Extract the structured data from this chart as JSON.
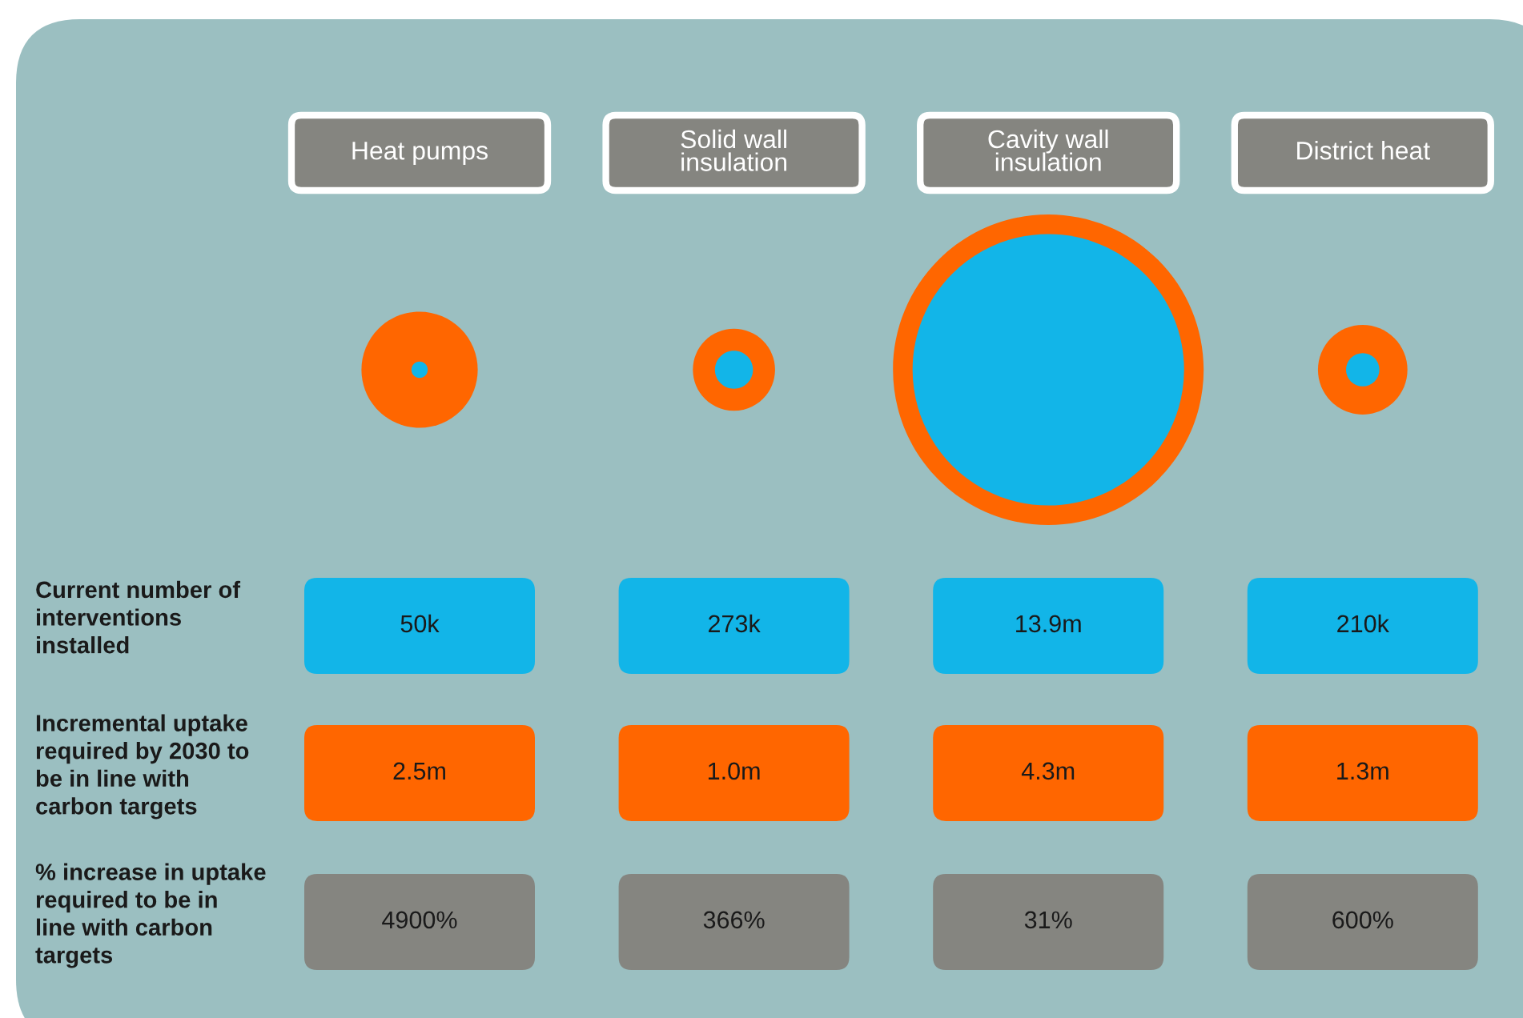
{
  "chart_data": {
    "type": "other",
    "categories": [
      "Heat pumps",
      "Solid wall\ninsulation",
      "Cavity wall\ninsulation",
      "District heat"
    ],
    "series": [
      {
        "name": "Current number of\ninterventions\ninstalled",
        "color": "#12b5e8",
        "values": [
          50000,
          273000,
          13900000,
          210000
        ],
        "value_labels": [
          "50k",
          "273k",
          "13.9m",
          "210k"
        ]
      },
      {
        "name": "Incremental uptake\nrequired by 2030 to\nbe in line with\ncarbon targets",
        "color": "#ff6600",
        "values": [
          2500000,
          1000000,
          4300000,
          1300000
        ],
        "value_labels": [
          "2.5m",
          "1.0m",
          "4.3m",
          "1.3m"
        ]
      },
      {
        "name": "% increase in uptake\nrequired to be in\nline with carbon\ntargets",
        "color": "#858580",
        "values": [
          4900,
          366,
          31,
          600
        ],
        "value_labels": [
          "4900%",
          "366%",
          "31%",
          "600%"
        ]
      }
    ]
  }
}
